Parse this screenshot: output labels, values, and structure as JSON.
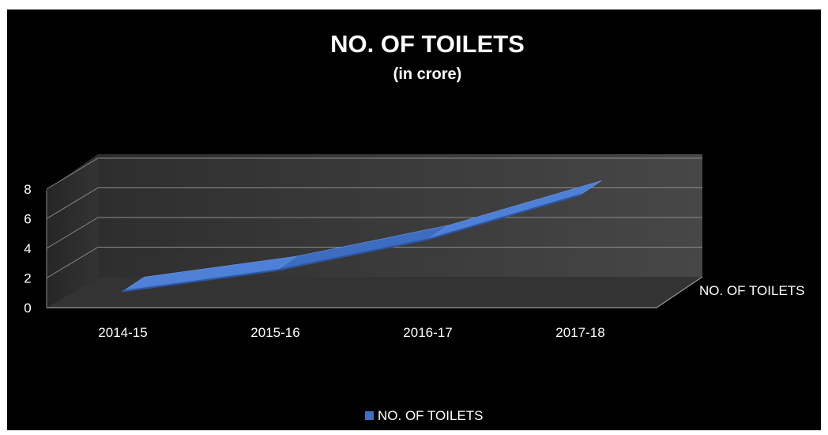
{
  "chart_data": {
    "type": "line",
    "style": "3d",
    "title": "NO. OF TOILETS",
    "subtitle": "(in crore)",
    "categories": [
      "2014-15",
      "2015-16",
      "2016-17",
      "2017-18"
    ],
    "series": [
      {
        "name": "NO. OF TOILETS",
        "values": [
          1.0,
          2.4,
          4.5,
          7.5
        ],
        "color": "#4a7ccf"
      }
    ],
    "ylim": [
      0,
      8
    ],
    "yticks": [
      0,
      2,
      4,
      6,
      8
    ],
    "depth_axis_label": "NO. OF TOILETS",
    "legend": {
      "position": "bottom",
      "label": "NO. OF TOILETS"
    },
    "grid": true,
    "background": "#000000",
    "wall_color": "#404040",
    "floor_color": "#333333",
    "gridline_color": "#8c8c8c"
  }
}
